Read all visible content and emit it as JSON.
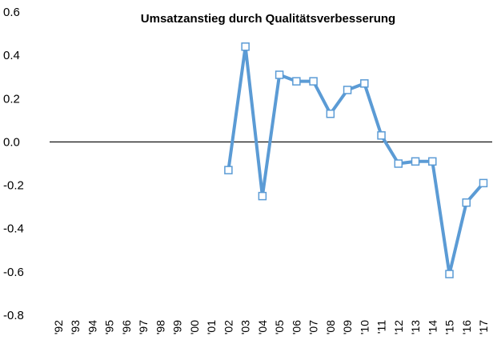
{
  "chart_data": {
    "type": "line",
    "title": "Umsatzanstieg durch Qualitätsverbesserung",
    "categories": [
      "'92",
      "'93",
      "'94",
      "'95",
      "'96",
      "'97",
      "'98",
      "'99",
      "'00",
      "'01",
      "'02",
      "'03",
      "'04",
      "'05",
      "'06",
      "'07",
      "'08",
      "'09",
      "'10",
      "'11",
      "'12",
      "'13",
      "'14",
      "'15",
      "'16",
      "'17"
    ],
    "series": [
      {
        "color": "#5b9bd5",
        "values": [
          null,
          null,
          null,
          null,
          null,
          null,
          null,
          null,
          null,
          null,
          -0.13,
          0.44,
          -0.25,
          0.31,
          0.28,
          0.28,
          0.13,
          0.24,
          0.27,
          0.03,
          -0.1,
          -0.09,
          -0.09,
          -0.61,
          -0.28,
          -0.19
        ]
      }
    ],
    "ylim": [
      -0.8,
      0.6
    ],
    "yticks": [
      0.6,
      0.4,
      0.2,
      {
        "value": 0,
        "label": "0.0"
      },
      -0.2,
      -0.4,
      -0.6,
      -0.8
    ]
  }
}
